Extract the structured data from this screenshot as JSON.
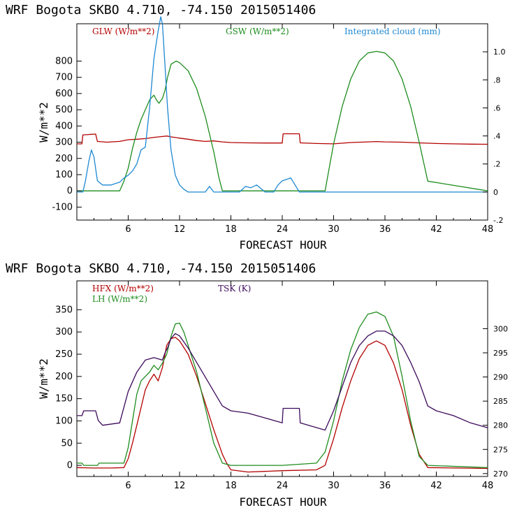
{
  "colors": {
    "red": "#b40000",
    "green": "#1e8c1e",
    "blue": "#1e88d2",
    "purple": "#3c0a5a"
  },
  "chart_data": [
    {
      "type": "line",
      "title": "WRF   Bogota SKBO     4.710, -74.150  2015051406",
      "xlabel": "FORECAST HOUR",
      "ylabel": "W/m**2",
      "xlim": [
        0,
        48
      ],
      "ylim": [
        -180,
        1030
      ],
      "ylim_right": [
        -0.2,
        1.2
      ],
      "xticks": [
        6,
        12,
        18,
        24,
        30,
        36,
        42,
        48
      ],
      "yticks": [
        -100,
        0,
        100,
        200,
        300,
        400,
        500,
        600,
        700,
        800
      ],
      "yticks_right": [
        "-.2",
        "0",
        ".2",
        ".4",
        ".6",
        ".8",
        "1.0"
      ],
      "legend_labels": [
        "GLW (W/m**2)",
        "GSW (W/m**2)",
        "Integrated cloud (mm)"
      ],
      "series": [
        {
          "name": "GLW (W/m**2)",
          "color": "red",
          "axis": "left",
          "x": [
            0,
            0.6,
            0.7,
            2.2,
            2.4,
            3.5,
            5,
            6,
            7,
            8,
            9,
            10,
            10.5,
            11,
            12,
            13,
            14,
            15,
            16,
            17,
            18,
            20,
            22,
            24,
            24.1,
            26,
            26.1,
            28,
            30,
            32,
            34,
            35,
            36,
            38,
            40,
            42,
            44,
            46,
            48
          ],
          "y": [
            290,
            290,
            345,
            350,
            305,
            300,
            305,
            315,
            318,
            322,
            330,
            335,
            338,
            333,
            325,
            318,
            310,
            305,
            308,
            302,
            298,
            296,
            295,
            295,
            352,
            352,
            296,
            292,
            290,
            298,
            302,
            304,
            302,
            300,
            296,
            292,
            290,
            288,
            287
          ]
        },
        {
          "name": "GSW (W/m**2)",
          "color": "green",
          "axis": "left",
          "x": [
            0,
            5,
            5.5,
            6,
            6.5,
            7,
            7.5,
            8,
            8.5,
            9,
            9.3,
            9.6,
            10,
            10.3,
            10.6,
            11,
            11.3,
            11.6,
            12,
            13,
            14,
            15,
            16,
            16.6,
            17,
            29,
            30,
            31,
            32,
            33,
            34,
            35,
            36,
            37,
            38,
            39,
            40,
            41,
            48
          ],
          "y": [
            0,
            0,
            60,
            140,
            260,
            360,
            440,
            500,
            560,
            590,
            560,
            540,
            570,
            620,
            700,
            780,
            790,
            800,
            790,
            740,
            630,
            460,
            240,
            80,
            0,
            0,
            290,
            520,
            690,
            800,
            850,
            860,
            850,
            800,
            690,
            520,
            300,
            60,
            0
          ]
        },
        {
          "name": "Integrated cloud (mm)",
          "color": "blue",
          "axis": "right",
          "x": [
            0,
            0.7,
            1,
            1.4,
            1.7,
            2,
            2.4,
            3,
            4,
            5,
            5.5,
            6,
            6.5,
            7,
            7.5,
            8,
            8.5,
            9,
            9.5,
            9.8,
            10,
            10.3,
            10.6,
            11,
            11.5,
            12,
            12.5,
            13,
            14,
            15,
            15.5,
            16,
            19,
            19.7,
            20.3,
            21,
            21.6,
            22,
            23,
            23.5,
            24,
            24.5,
            25,
            25.5,
            26,
            48
          ],
          "y": [
            0,
            0,
            0.08,
            0.22,
            0.3,
            0.25,
            0.08,
            0.05,
            0.05,
            0.07,
            0.1,
            0.12,
            0.15,
            0.2,
            0.3,
            0.32,
            0.6,
            0.95,
            1.15,
            1.25,
            1.2,
            0.9,
            0.6,
            0.3,
            0.12,
            0.05,
            0.02,
            0,
            0,
            0,
            0.04,
            0,
            0,
            0.04,
            0.03,
            0.05,
            0.02,
            0,
            0,
            0.05,
            0.08,
            0.09,
            0.1,
            0.05,
            0,
            0
          ]
        }
      ]
    },
    {
      "type": "line",
      "title": "WRF   Bogota SKBO     4.710, -74.150  2015051406",
      "xlabel": "FORECAST HOUR",
      "ylabel": "W/m**2",
      "xlim": [
        0,
        48
      ],
      "ylim": [
        -25,
        415
      ],
      "ylim_right": [
        269.4,
        309.9
      ],
      "xticks": [
        6,
        12,
        18,
        24,
        30,
        36,
        42,
        48
      ],
      "yticks": [
        0,
        50,
        100,
        150,
        200,
        250,
        300,
        350
      ],
      "yticks_right": [
        270,
        275,
        280,
        285,
        290,
        295,
        300
      ],
      "legend_labels": [
        "HFX (W/m**2)",
        "LH  (W/m**2)",
        "TSK (K)"
      ],
      "series": [
        {
          "name": "HFX (W/m**2)",
          "color": "red",
          "axis": "left",
          "x": [
            0,
            2,
            4,
            5.5,
            6,
            6.5,
            7,
            7.5,
            8,
            8.5,
            9,
            9.5,
            10,
            10.5,
            11,
            11.5,
            12,
            13,
            14,
            15,
            16,
            17,
            17.5,
            18,
            20,
            24,
            28,
            29,
            30,
            31,
            32,
            33,
            34,
            35,
            36,
            37,
            38,
            39,
            40,
            41,
            48
          ],
          "y": [
            -5,
            -6,
            -6,
            -5,
            15,
            50,
            90,
            130,
            170,
            190,
            205,
            190,
            220,
            270,
            285,
            288,
            280,
            250,
            200,
            140,
            80,
            25,
            5,
            -10,
            -15,
            -12,
            -10,
            0,
            60,
            130,
            190,
            240,
            270,
            280,
            270,
            230,
            170,
            90,
            25,
            -5,
            -7
          ]
        },
        {
          "name": "LH  (W/m**2)",
          "color": "green",
          "axis": "left",
          "x": [
            0,
            0.6,
            0.8,
            2.4,
            2.6,
            4,
            5.5,
            6,
            6.5,
            7,
            7.5,
            8,
            8.5,
            9,
            9.5,
            10,
            10.5,
            11,
            11.5,
            12,
            12.5,
            13,
            14,
            15,
            16,
            17,
            18,
            20,
            24,
            28,
            29,
            30,
            31,
            32,
            33,
            34,
            35,
            36,
            37,
            38,
            39,
            40,
            41,
            48
          ],
          "y": [
            5,
            5,
            0,
            0,
            5,
            5,
            5,
            40,
            100,
            160,
            190,
            200,
            210,
            225,
            215,
            230,
            250,
            290,
            318,
            320,
            300,
            270,
            210,
            130,
            50,
            5,
            0,
            0,
            0,
            5,
            30,
            100,
            190,
            260,
            310,
            340,
            345,
            335,
            290,
            200,
            100,
            20,
            0,
            -5
          ]
        },
        {
          "name": "TSK (K)",
          "color": "purple",
          "axis": "right",
          "x": [
            0,
            0.6,
            0.8,
            2.2,
            2.5,
            3,
            5,
            6,
            7,
            8,
            9,
            10,
            10.3,
            10.6,
            11,
            11.5,
            12,
            13,
            14,
            15,
            16,
            17,
            18,
            20,
            22,
            24,
            24.1,
            26,
            26.1,
            29,
            30,
            31,
            32,
            33,
            34,
            35,
            36,
            37,
            38,
            39,
            40,
            41,
            42,
            44,
            46,
            48
          ],
          "y": [
            282,
            282,
            283,
            283,
            281,
            280,
            280.5,
            287,
            291,
            293.5,
            294,
            293.5,
            295,
            296,
            298,
            299,
            298.5,
            296,
            293,
            290,
            287,
            284,
            283,
            282.5,
            281.5,
            280.5,
            283.5,
            283.5,
            280.5,
            279,
            283,
            288,
            293,
            296.5,
            298.5,
            299.5,
            299.5,
            298.5,
            296.5,
            293,
            289,
            284,
            283,
            282,
            280.5,
            279.5
          ]
        }
      ]
    }
  ]
}
